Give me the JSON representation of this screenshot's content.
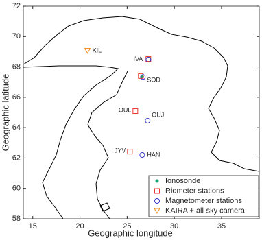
{
  "chart_data": {
    "type": "scatter",
    "x_label": "Geographic longitude",
    "y_label": "Geographic latitude",
    "xlim": [
      14,
      39
    ],
    "ylim": [
      58,
      72
    ],
    "xticks": [
      15,
      20,
      25,
      30,
      35
    ],
    "yticks": [
      58,
      60,
      62,
      64,
      66,
      68,
      70,
      72
    ],
    "legend": "lower right",
    "series": [
      {
        "name": "Ionosonde",
        "color": "#1f9a6e",
        "marker": "dot",
        "x": [
          26.6
        ],
        "values": [
          67.35
        ]
      },
      {
        "name": "Riometer stations",
        "color": "#e8382f",
        "marker": "square",
        "x": [
          27.25,
          26.45,
          25.87,
          25.29
        ],
        "values": [
          68.52,
          67.4,
          65.09,
          62.42
        ]
      },
      {
        "name": "Magnetometer stations",
        "color": "#3535c8",
        "marker": "circle",
        "x": [
          27.25,
          26.67,
          27.17,
          26.6
        ],
        "values": [
          68.48,
          67.33,
          64.46,
          62.2
        ]
      },
      {
        "name": "KAIRA + all-sky camera",
        "color": "#f08c1c",
        "marker": "triangle",
        "x": [
          20.8
        ],
        "values": [
          69.06
        ]
      }
    ],
    "annotations": [
      {
        "text": "KIL",
        "x": 20.8,
        "y": 69.06
      },
      {
        "text": "IVA",
        "x": 27.25,
        "y": 68.5
      },
      {
        "text": "SOD",
        "x": 26.6,
        "y": 67.35
      },
      {
        "text": "OUL",
        "x": 25.87,
        "y": 65.09
      },
      {
        "text": "OUJ",
        "x": 27.17,
        "y": 64.46
      },
      {
        "text": "JYV",
        "x": 25.29,
        "y": 62.42
      },
      {
        "text": "HAN",
        "x": 26.6,
        "y": 62.2
      }
    ]
  }
}
